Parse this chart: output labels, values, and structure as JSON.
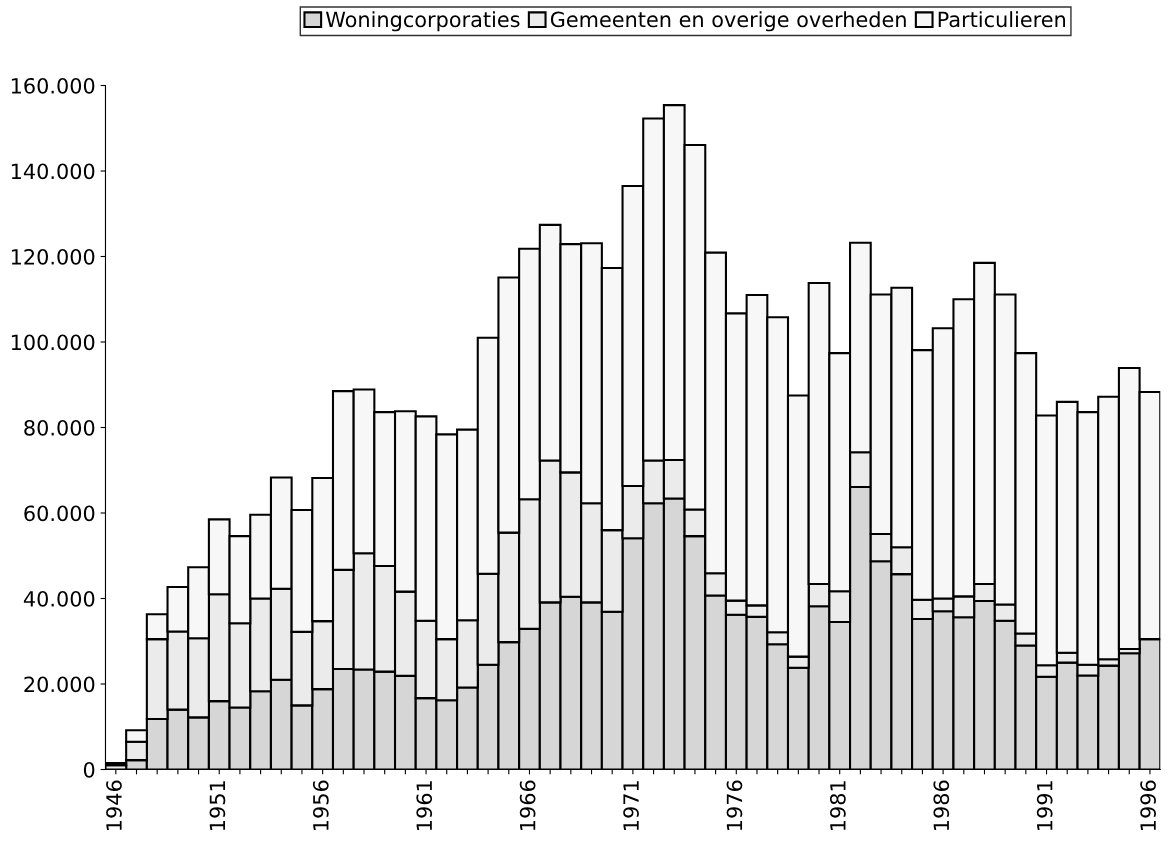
{
  "chart_data": {
    "type": "bar",
    "stacked": true,
    "categories": [
      "1946",
      null,
      null,
      null,
      null,
      "1951",
      null,
      null,
      null,
      null,
      "1956",
      null,
      null,
      null,
      null,
      "1961",
      null,
      null,
      null,
      null,
      "1966",
      null,
      null,
      null,
      null,
      "1971",
      null,
      null,
      null,
      null,
      "1976",
      null,
      null,
      null,
      null,
      "1981",
      null,
      null,
      null,
      null,
      "1986",
      null,
      null,
      null,
      null,
      "1991",
      null,
      null,
      null,
      null,
      "1996"
    ],
    "series": [
      {
        "name": "Woningcorporaties",
        "color": "#d6d6d6",
        "values": [
          null,
          2200,
          11800,
          14000,
          12200,
          16000,
          14500,
          18300,
          21000,
          15000,
          18800,
          23500,
          23400,
          22900,
          21900,
          16700,
          16200,
          19200,
          24500,
          29800,
          32900,
          39100,
          40400,
          39100,
          36900,
          54100,
          62300,
          63400,
          54600,
          40700,
          36200,
          35700,
          29300,
          23800,
          38200,
          34500,
          66100,
          48700,
          45700,
          35200,
          37000,
          35600,
          39400,
          34800,
          29000,
          21700,
          25000,
          22000,
          24300,
          27200,
          30500
        ]
      },
      {
        "name": "Gemeenten en overige overheden",
        "color": "#ebebeb",
        "values": [
          1000,
          4300,
          18700,
          18300,
          18500,
          25000,
          19700,
          21700,
          21300,
          17200,
          15900,
          23200,
          27200,
          24700,
          19700,
          18100,
          14300,
          15700,
          21300,
          25600,
          30300,
          33200,
          29100,
          23200,
          19100,
          12200,
          10000,
          9000,
          6200,
          5200,
          3300,
          2700,
          2800,
          2600,
          5200,
          7200,
          8100,
          6400,
          6300,
          4500,
          3000,
          4900,
          4000,
          3800,
          2800,
          2700,
          2300,
          2500,
          1500,
          1000,
          null
        ]
      },
      {
        "name": "Particulieren",
        "color": "#f7f7f7",
        "values": [
          500,
          2700,
          5800,
          10400,
          16600,
          17500,
          20400,
          19600,
          26000,
          28500,
          33500,
          41800,
          38300,
          36000,
          42200,
          47800,
          47900,
          44600,
          55200,
          59700,
          58600,
          55100,
          53400,
          60800,
          61300,
          70200,
          80000,
          83000,
          85300,
          75000,
          67200,
          72600,
          73700,
          61100,
          70400,
          55700,
          49000,
          56000,
          60700,
          58400,
          63200,
          69500,
          75100,
          72500,
          65600,
          58400,
          58700,
          59100,
          61400,
          65700,
          57800
        ]
      }
    ],
    "ylim": [
      0,
      160000
    ],
    "yticks": [
      {
        "value": 0,
        "label": "0"
      },
      {
        "value": 20000,
        "label": "20.000"
      },
      {
        "value": 40000,
        "label": "40.000"
      },
      {
        "value": 60000,
        "label": "60.000"
      },
      {
        "value": 80000,
        "label": "80.000"
      },
      {
        "value": 100000,
        "label": "100.000"
      },
      {
        "value": 120000,
        "label": "120.000"
      },
      {
        "value": 140000,
        "label": "140.000"
      },
      {
        "value": 160000,
        "label": "160.000"
      }
    ],
    "grid": false,
    "legend": "top"
  }
}
